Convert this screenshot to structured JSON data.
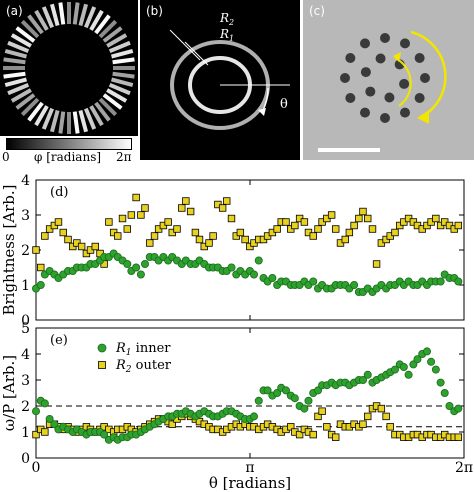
{
  "panels": {
    "a": {
      "tag": "(a)",
      "colorbar_min": "0",
      "colorbar_label": "φ [radians]",
      "colorbar_max": "2π"
    },
    "b": {
      "tag": "(b)",
      "label_r2": "R",
      "label_r2_sub": "2",
      "label_r1": "R",
      "label_r1_sub": "1",
      "angle_label": "θ"
    },
    "c": {
      "tag": "(c)",
      "arrow_color": "#f2e600"
    }
  },
  "chart_data": [
    {
      "id": "d",
      "tag": "(d)",
      "type": "scatter",
      "ylabel": "Brightness [Arb.]",
      "xlim": [
        0,
        6.2832
      ],
      "ylim": [
        0,
        4
      ],
      "yticks": [
        "0",
        "1",
        "2",
        "3",
        "4"
      ],
      "xtick_labels": [
        "0",
        "π",
        "2π"
      ],
      "series": [
        {
          "name": "R1 inner",
          "marker": "circle",
          "color": "#2ea12e",
          "x": [
            0.0,
            0.07,
            0.13,
            0.2,
            0.27,
            0.33,
            0.4,
            0.47,
            0.54,
            0.6,
            0.67,
            0.74,
            0.8,
            0.87,
            0.94,
            1.0,
            1.07,
            1.14,
            1.2,
            1.27,
            1.34,
            1.4,
            1.47,
            1.54,
            1.6,
            1.67,
            1.74,
            1.8,
            1.87,
            1.94,
            2.0,
            2.07,
            2.14,
            2.2,
            2.27,
            2.34,
            2.4,
            2.47,
            2.54,
            2.6,
            2.67,
            2.74,
            2.8,
            2.87,
            2.94,
            3.0,
            3.07,
            3.14,
            3.2,
            3.27,
            3.34,
            3.4,
            3.47,
            3.54,
            3.6,
            3.67,
            3.74,
            3.8,
            3.87,
            3.94,
            4.0,
            4.07,
            4.14,
            4.2,
            4.27,
            4.34,
            4.4,
            4.47,
            4.54,
            4.6,
            4.67,
            4.74,
            4.8,
            4.87,
            4.94,
            5.0,
            5.07,
            5.14,
            5.2,
            5.27,
            5.34,
            5.4,
            5.47,
            5.54,
            5.6,
            5.67,
            5.74,
            5.8,
            5.87,
            5.94,
            6.0,
            6.07,
            6.14,
            6.2
          ],
          "values": [
            0.9,
            1.0,
            1.3,
            1.4,
            1.3,
            1.2,
            1.3,
            1.4,
            1.4,
            1.5,
            1.5,
            1.5,
            1.6,
            1.6,
            1.7,
            1.8,
            1.8,
            1.9,
            1.8,
            1.7,
            1.6,
            1.4,
            1.5,
            1.3,
            1.6,
            1.8,
            1.8,
            1.7,
            1.8,
            1.7,
            1.8,
            1.7,
            1.6,
            1.7,
            1.6,
            1.6,
            1.7,
            1.6,
            1.5,
            1.5,
            1.5,
            1.4,
            1.4,
            1.5,
            1.3,
            1.4,
            1.3,
            1.4,
            1.3,
            1.7,
            1.2,
            1.1,
            1.2,
            1.0,
            1.1,
            1.1,
            1.0,
            1.0,
            1.0,
            1.1,
            1.0,
            1.1,
            0.9,
            1.0,
            0.9,
            0.9,
            1.0,
            1.0,
            1.0,
            0.9,
            1.0,
            0.8,
            0.8,
            0.9,
            0.8,
            0.9,
            1.0,
            0.9,
            1.0,
            1.0,
            1.1,
            1.0,
            1.1,
            1.0,
            1.0,
            1.1,
            1.0,
            1.1,
            1.1,
            1.1,
            1.3,
            1.2,
            1.2,
            1.1
          ]
        },
        {
          "name": "R2 outer",
          "marker": "square",
          "color": "#e8d21f",
          "x": [
            0.0,
            0.07,
            0.13,
            0.2,
            0.27,
            0.33,
            0.4,
            0.47,
            0.54,
            0.6,
            0.67,
            0.74,
            0.8,
            0.87,
            0.94,
            1.0,
            1.07,
            1.14,
            1.2,
            1.27,
            1.34,
            1.4,
            1.47,
            1.54,
            1.6,
            1.67,
            1.74,
            1.8,
            1.87,
            1.94,
            2.0,
            2.07,
            2.14,
            2.2,
            2.27,
            2.34,
            2.4,
            2.47,
            2.54,
            2.6,
            2.67,
            2.74,
            2.8,
            2.87,
            2.94,
            3.0,
            3.07,
            3.14,
            3.2,
            3.27,
            3.34,
            3.4,
            3.47,
            3.54,
            3.6,
            3.67,
            3.74,
            3.8,
            3.87,
            3.94,
            4.0,
            4.07,
            4.14,
            4.2,
            4.27,
            4.34,
            4.4,
            4.47,
            4.54,
            4.6,
            4.67,
            4.74,
            4.8,
            4.87,
            4.94,
            5.0,
            5.07,
            5.14,
            5.2,
            5.27,
            5.34,
            5.4,
            5.47,
            5.54,
            5.6,
            5.67,
            5.74,
            5.8,
            5.87,
            5.94,
            6.0,
            6.07,
            6.14,
            6.2
          ],
          "values": [
            2.0,
            1.5,
            2.4,
            2.6,
            2.7,
            2.8,
            2.5,
            2.3,
            2.1,
            2.2,
            2.1,
            1.9,
            2.0,
            2.1,
            1.9,
            1.6,
            2.8,
            2.5,
            2.4,
            2.9,
            2.6,
            3.0,
            3.5,
            3.0,
            3.2,
            2.2,
            2.4,
            2.6,
            2.7,
            2.8,
            2.5,
            2.6,
            3.2,
            3.4,
            3.1,
            2.5,
            2.3,
            2.1,
            2.2,
            2.4,
            3.3,
            3.2,
            3.4,
            2.9,
            2.4,
            2.5,
            2.3,
            2.1,
            2.2,
            2.3,
            2.3,
            2.4,
            2.5,
            2.6,
            2.8,
            2.8,
            2.6,
            2.7,
            2.9,
            2.8,
            2.5,
            2.4,
            2.6,
            2.8,
            2.9,
            3.0,
            2.6,
            2.2,
            2.3,
            2.5,
            2.7,
            2.9,
            3.1,
            2.9,
            2.6,
            1.6,
            2.2,
            2.3,
            2.4,
            2.5,
            2.7,
            2.8,
            2.9,
            2.8,
            2.7,
            2.6,
            2.7,
            2.8,
            2.9,
            2.7,
            2.8,
            2.7,
            2.6,
            2.7
          ]
        }
      ]
    },
    {
      "id": "e",
      "tag": "(e)",
      "type": "scatter",
      "ylabel": "ω/P [Arb.]",
      "xlabel": "θ [radians]",
      "xlim": [
        0,
        6.2832
      ],
      "ylim": [
        0,
        5
      ],
      "yticks": [
        "0",
        "1",
        "2",
        "3",
        "4",
        "5"
      ],
      "xtick_labels": [
        "0",
        "π",
        "2π"
      ],
      "hlines": [
        2.0,
        1.2
      ],
      "legend": {
        "position": "top-left",
        "entries": [
          {
            "name": "R",
            "sub": "1",
            "suffix": " inner"
          },
          {
            "name": "R",
            "sub": "2",
            "suffix": " outer"
          }
        ]
      },
      "series": [
        {
          "name": "R1 inner",
          "marker": "circle",
          "color": "#2ea12e",
          "x": [
            0.0,
            0.07,
            0.13,
            0.2,
            0.27,
            0.33,
            0.4,
            0.47,
            0.54,
            0.6,
            0.67,
            0.74,
            0.8,
            0.87,
            0.94,
            1.0,
            1.07,
            1.14,
            1.2,
            1.27,
            1.34,
            1.4,
            1.47,
            1.54,
            1.6,
            1.67,
            1.74,
            1.8,
            1.87,
            1.94,
            2.0,
            2.07,
            2.14,
            2.2,
            2.27,
            2.34,
            2.4,
            2.47,
            2.54,
            2.6,
            2.67,
            2.74,
            2.8,
            2.87,
            2.94,
            3.0,
            3.07,
            3.14,
            3.2,
            3.27,
            3.34,
            3.4,
            3.47,
            3.54,
            3.6,
            3.67,
            3.74,
            3.8,
            3.87,
            3.94,
            4.0,
            4.07,
            4.14,
            4.2,
            4.27,
            4.34,
            4.4,
            4.47,
            4.54,
            4.6,
            4.67,
            4.74,
            4.8,
            4.87,
            4.94,
            5.0,
            5.07,
            5.14,
            5.2,
            5.27,
            5.34,
            5.4,
            5.47,
            5.54,
            5.6,
            5.67,
            5.74,
            5.8,
            5.87,
            5.94,
            6.0,
            6.07,
            6.14,
            6.2
          ],
          "values": [
            1.8,
            2.2,
            2.1,
            1.5,
            1.3,
            1.1,
            1.2,
            1.1,
            1.0,
            1.1,
            1.0,
            0.9,
            1.0,
            1.0,
            1.0,
            0.9,
            0.7,
            0.8,
            0.7,
            0.8,
            0.8,
            0.9,
            0.9,
            1.0,
            1.1,
            1.2,
            1.3,
            1.4,
            1.5,
            1.6,
            1.6,
            1.7,
            1.7,
            1.8,
            1.7,
            1.6,
            1.7,
            1.8,
            1.7,
            1.6,
            1.6,
            1.7,
            1.8,
            1.8,
            1.7,
            1.6,
            1.5,
            1.5,
            1.6,
            2.2,
            2.6,
            2.6,
            2.4,
            2.5,
            2.7,
            2.6,
            2.4,
            2.3,
            2.0,
            1.9,
            2.2,
            2.5,
            2.6,
            2.8,
            2.8,
            2.9,
            2.8,
            2.9,
            2.9,
            2.8,
            2.9,
            3.0,
            3.0,
            3.2,
            2.9,
            3.0,
            3.1,
            3.2,
            3.3,
            3.4,
            3.6,
            3.5,
            3.2,
            3.6,
            3.8,
            4.0,
            4.1,
            3.7,
            3.4,
            2.9,
            2.5,
            2.0,
            1.8,
            1.9
          ]
        },
        {
          "name": "R2 outer",
          "marker": "square",
          "color": "#e8d21f",
          "x": [
            0.0,
            0.07,
            0.13,
            0.2,
            0.27,
            0.33,
            0.4,
            0.47,
            0.54,
            0.6,
            0.67,
            0.74,
            0.8,
            0.87,
            0.94,
            1.0,
            1.07,
            1.14,
            1.2,
            1.27,
            1.34,
            1.4,
            1.47,
            1.54,
            1.6,
            1.67,
            1.74,
            1.8,
            1.87,
            1.94,
            2.0,
            2.07,
            2.14,
            2.2,
            2.27,
            2.34,
            2.4,
            2.47,
            2.54,
            2.6,
            2.67,
            2.74,
            2.8,
            2.87,
            2.94,
            3.0,
            3.07,
            3.14,
            3.2,
            3.27,
            3.34,
            3.4,
            3.47,
            3.54,
            3.6,
            3.67,
            3.74,
            3.8,
            3.87,
            3.94,
            4.0,
            4.07,
            4.14,
            4.2,
            4.27,
            4.34,
            4.4,
            4.47,
            4.54,
            4.6,
            4.67,
            4.74,
            4.8,
            4.87,
            4.94,
            5.0,
            5.07,
            5.14,
            5.2,
            5.27,
            5.34,
            5.4,
            5.47,
            5.54,
            5.6,
            5.67,
            5.74,
            5.8,
            5.87,
            5.94,
            6.0,
            6.07,
            6.14,
            6.2
          ],
          "values": [
            0.9,
            1.1,
            1.0,
            1.3,
            1.3,
            1.2,
            1.1,
            1.2,
            1.1,
            1.0,
            1.1,
            1.2,
            1.1,
            1.0,
            1.1,
            1.2,
            1.1,
            1.0,
            1.1,
            1.1,
            1.2,
            1.1,
            1.0,
            1.1,
            1.2,
            1.3,
            1.4,
            1.5,
            1.5,
            1.4,
            1.3,
            1.5,
            1.6,
            1.7,
            1.6,
            1.5,
            1.4,
            1.3,
            1.2,
            1.1,
            1.1,
            1.0,
            1.1,
            1.2,
            1.3,
            1.2,
            1.3,
            1.2,
            1.2,
            1.1,
            1.2,
            1.3,
            1.2,
            1.1,
            1.0,
            1.1,
            1.2,
            1.0,
            0.9,
            1.1,
            1.0,
            0.9,
            1.6,
            1.8,
            1.2,
            0.9,
            0.8,
            1.3,
            1.2,
            1.2,
            1.3,
            1.2,
            1.3,
            1.6,
            1.9,
            2.0,
            1.9,
            1.6,
            1.2,
            0.9,
            0.9,
            0.8,
            0.8,
            0.9,
            0.9,
            0.8,
            0.9,
            0.9,
            0.8,
            0.8,
            0.9,
            0.8,
            0.8,
            0.8
          ]
        }
      ]
    }
  ]
}
